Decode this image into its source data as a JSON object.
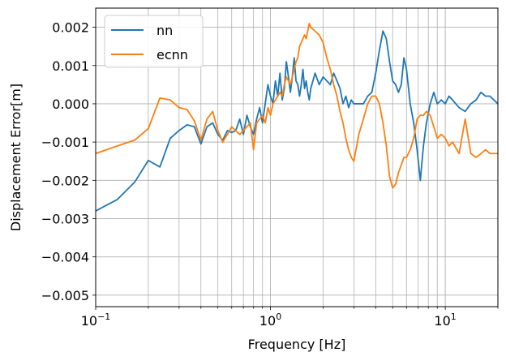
{
  "chart_data": {
    "type": "line",
    "xlabel": "Frequency [Hz]",
    "ylabel": "Displacement Error[m]",
    "xscale": "log",
    "xlim": [
      0.1,
      20
    ],
    "ylim": [
      -0.0053,
      0.0025
    ],
    "grid": true,
    "legend_position": "top-left",
    "x_ticks": [
      {
        "value": 0.1,
        "base": "10",
        "exp": "−1"
      },
      {
        "value": 1,
        "base": "10",
        "exp": "0"
      },
      {
        "value": 10,
        "base": "10",
        "exp": "1"
      }
    ],
    "y_ticks": [
      {
        "value": 0.002,
        "label": "0.002"
      },
      {
        "value": 0.001,
        "label": "0.001"
      },
      {
        "value": 0.0,
        "label": "0.000"
      },
      {
        "value": -0.001,
        "label": "−0.001"
      },
      {
        "value": -0.002,
        "label": "−0.002"
      },
      {
        "value": -0.003,
        "label": "−0.003"
      },
      {
        "value": -0.004,
        "label": "−0.004"
      },
      {
        "value": -0.005,
        "label": "−0.005"
      }
    ],
    "series": [
      {
        "name": "nn",
        "color": "#1f77b4",
        "points": [
          [
            0.1,
            -0.0028
          ],
          [
            0.133,
            -0.0025
          ],
          [
            0.167,
            -0.00205
          ],
          [
            0.2,
            -0.00148
          ],
          [
            0.233,
            -0.00165
          ],
          [
            0.267,
            -0.0009
          ],
          [
            0.3,
            -0.0007
          ],
          [
            0.333,
            -0.00055
          ],
          [
            0.367,
            -0.0006
          ],
          [
            0.4,
            -0.00105
          ],
          [
            0.433,
            -0.0006
          ],
          [
            0.467,
            -0.0005
          ],
          [
            0.5,
            -0.0008
          ],
          [
            0.533,
            -0.00095
          ],
          [
            0.567,
            -0.0007
          ],
          [
            0.6,
            -0.00075
          ],
          [
            0.633,
            -0.0007
          ],
          [
            0.667,
            -0.0004
          ],
          [
            0.7,
            -0.0008
          ],
          [
            0.733,
            -0.0003
          ],
          [
            0.767,
            -0.0006
          ],
          [
            0.8,
            -0.0008
          ],
          [
            0.833,
            -0.0004
          ],
          [
            0.867,
            -0.0001
          ],
          [
            0.9,
            -0.0005
          ],
          [
            0.933,
            0.0
          ],
          [
            0.967,
            0.0005
          ],
          [
            1.0,
            0.0002
          ],
          [
            1.033,
            0.0
          ],
          [
            1.067,
            0.0006
          ],
          [
            1.1,
            0.0002
          ],
          [
            1.133,
            0.0008
          ],
          [
            1.167,
            0.0001
          ],
          [
            1.2,
            0.0004
          ],
          [
            1.233,
            0.0011
          ],
          [
            1.267,
            0.0007
          ],
          [
            1.3,
            0.0003
          ],
          [
            1.333,
            0.0007
          ],
          [
            1.367,
            0.0012
          ],
          [
            1.4,
            0.0006
          ],
          [
            1.433,
            0.0005
          ],
          [
            1.467,
            0.0002
          ],
          [
            1.5,
            0.0005
          ],
          [
            1.533,
            0.0009
          ],
          [
            1.567,
            0.0004
          ],
          [
            1.6,
            0.0006
          ],
          [
            1.633,
            0.0003
          ],
          [
            1.667,
            0.0001
          ],
          [
            1.7,
            0.0004
          ],
          [
            1.8,
            0.0008
          ],
          [
            1.9,
            0.0005
          ],
          [
            2.0,
            0.0007
          ],
          [
            2.1,
            0.0006
          ],
          [
            2.2,
            0.0005
          ],
          [
            2.3,
            0.0008
          ],
          [
            2.4,
            0.0006
          ],
          [
            2.5,
            0.0004
          ],
          [
            2.6,
            0.0
          ],
          [
            2.7,
            0.0002
          ],
          [
            2.8,
            -0.0001
          ],
          [
            2.9,
            0.0001
          ],
          [
            3.0,
            0.0
          ],
          [
            3.2,
            0.0
          ],
          [
            3.4,
            0.0
          ],
          [
            3.6,
            0.0002
          ],
          [
            3.8,
            0.0003
          ],
          [
            4.0,
            0.0008
          ],
          [
            4.2,
            0.0014
          ],
          [
            4.4,
            0.0019
          ],
          [
            4.6,
            0.0017
          ],
          [
            4.8,
            0.0011
          ],
          [
            5.0,
            0.0006
          ],
          [
            5.2,
            0.0005
          ],
          [
            5.4,
            0.0003
          ],
          [
            5.6,
            0.0005
          ],
          [
            5.8,
            0.0012
          ],
          [
            6.0,
            0.0009
          ],
          [
            6.3,
            0.0
          ],
          [
            6.6,
            -0.0005
          ],
          [
            6.9,
            -0.0012
          ],
          [
            7.2,
            -0.002
          ],
          [
            7.5,
            -0.0011
          ],
          [
            7.8,
            -0.0005
          ],
          [
            8.2,
            0.0
          ],
          [
            8.6,
            0.0003
          ],
          [
            9.0,
            0.0
          ],
          [
            9.5,
            0.0001
          ],
          [
            10.0,
            0.0
          ],
          [
            10.5,
            0.0002
          ],
          [
            11.0,
            0.0001
          ],
          [
            12.0,
            -0.0001
          ],
          [
            13.0,
            -0.0002
          ],
          [
            14.0,
            0.0
          ],
          [
            15.0,
            0.0001
          ],
          [
            16.0,
            0.0003
          ],
          [
            17.0,
            0.0002
          ],
          [
            18.0,
            0.0002
          ],
          [
            19.0,
            0.0001
          ],
          [
            20.0,
            0.0
          ]
        ]
      },
      {
        "name": "ecnn",
        "color": "#ff7f0e",
        "points": [
          [
            0.1,
            -0.0013
          ],
          [
            0.133,
            -0.0011
          ],
          [
            0.167,
            -0.00095
          ],
          [
            0.2,
            -0.00065
          ],
          [
            0.233,
            0.00015
          ],
          [
            0.267,
            0.0001
          ],
          [
            0.3,
            -0.0001
          ],
          [
            0.333,
            -0.00015
          ],
          [
            0.367,
            -0.00045
          ],
          [
            0.4,
            -0.00095
          ],
          [
            0.433,
            -0.0004
          ],
          [
            0.467,
            -0.0002
          ],
          [
            0.5,
            -0.0007
          ],
          [
            0.533,
            -0.001
          ],
          [
            0.567,
            -0.0008
          ],
          [
            0.6,
            -0.0006
          ],
          [
            0.633,
            -0.0007
          ],
          [
            0.667,
            -0.0008
          ],
          [
            0.7,
            -0.0007
          ],
          [
            0.733,
            -0.0006
          ],
          [
            0.767,
            -0.0005
          ],
          [
            0.8,
            -0.0012
          ],
          [
            0.833,
            -0.0005
          ],
          [
            0.867,
            -0.0004
          ],
          [
            0.9,
            -0.0003
          ],
          [
            0.933,
            -0.0005
          ],
          [
            0.967,
            -0.0001
          ],
          [
            1.0,
            -0.0003
          ],
          [
            1.033,
            0.0
          ],
          [
            1.067,
            0.0001
          ],
          [
            1.1,
            0.0002
          ],
          [
            1.133,
            0.0003
          ],
          [
            1.167,
            0.0002
          ],
          [
            1.2,
            0.0005
          ],
          [
            1.233,
            0.0007
          ],
          [
            1.267,
            0.0006
          ],
          [
            1.3,
            0.0005
          ],
          [
            1.333,
            0.0007
          ],
          [
            1.367,
            0.0009
          ],
          [
            1.4,
            0.0011
          ],
          [
            1.433,
            0.0012
          ],
          [
            1.467,
            0.0015
          ],
          [
            1.5,
            0.0016
          ],
          [
            1.533,
            0.0017
          ],
          [
            1.567,
            0.0018
          ],
          [
            1.6,
            0.0017
          ],
          [
            1.633,
            0.0019
          ],
          [
            1.667,
            0.0021
          ],
          [
            1.7,
            0.002
          ],
          [
            1.8,
            0.0019
          ],
          [
            1.9,
            0.0018
          ],
          [
            2.0,
            0.0016
          ],
          [
            2.1,
            0.0012
          ],
          [
            2.2,
            0.0009
          ],
          [
            2.3,
            0.0005
          ],
          [
            2.4,
            0.0002
          ],
          [
            2.5,
            -0.0002
          ],
          [
            2.6,
            -0.0005
          ],
          [
            2.7,
            -0.0009
          ],
          [
            2.8,
            -0.0012
          ],
          [
            2.9,
            -0.0014
          ],
          [
            3.0,
            -0.0015
          ],
          [
            3.2,
            -0.0008
          ],
          [
            3.4,
            -0.0004
          ],
          [
            3.6,
            0.0
          ],
          [
            3.8,
            0.0002
          ],
          [
            4.0,
            0.0002
          ],
          [
            4.2,
            0.0
          ],
          [
            4.4,
            -0.0005
          ],
          [
            4.6,
            -0.0011
          ],
          [
            4.8,
            -0.0019
          ],
          [
            5.0,
            -0.0022
          ],
          [
            5.2,
            -0.0021
          ],
          [
            5.4,
            -0.0018
          ],
          [
            5.6,
            -0.0016
          ],
          [
            5.8,
            -0.0014
          ],
          [
            6.0,
            -0.0014
          ],
          [
            6.3,
            -0.0012
          ],
          [
            6.6,
            -0.0009
          ],
          [
            6.9,
            -0.0004
          ],
          [
            7.2,
            -0.0003
          ],
          [
            7.5,
            -0.0003
          ],
          [
            7.8,
            -0.0002
          ],
          [
            8.2,
            -0.0003
          ],
          [
            8.6,
            -0.0006
          ],
          [
            9.0,
            -0.0009
          ],
          [
            9.5,
            -0.0008
          ],
          [
            10.0,
            -0.0009
          ],
          [
            10.5,
            -0.0011
          ],
          [
            11.0,
            -0.001
          ],
          [
            12.0,
            -0.0013
          ],
          [
            13.0,
            -0.0004
          ],
          [
            14.0,
            -0.0013
          ],
          [
            15.0,
            -0.0014
          ],
          [
            16.0,
            -0.0013
          ],
          [
            17.0,
            -0.0012
          ],
          [
            18.0,
            -0.0013
          ],
          [
            19.0,
            -0.0013
          ],
          [
            20.0,
            -0.0013
          ]
        ]
      }
    ]
  }
}
